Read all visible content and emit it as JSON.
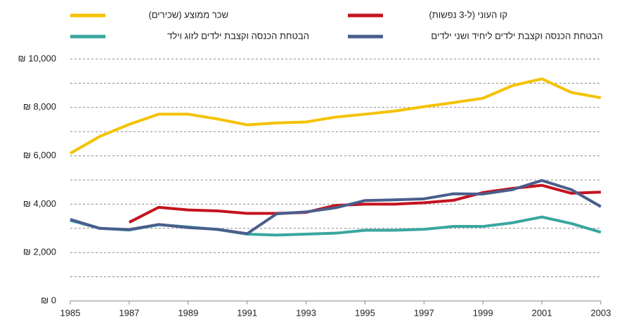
{
  "chart_data": {
    "type": "line",
    "x": [
      1985,
      1986,
      1987,
      1988,
      1989,
      1990,
      1991,
      1992,
      1993,
      1994,
      1995,
      1996,
      1997,
      1998,
      1999,
      2000,
      2001,
      2002,
      2003
    ],
    "series": [
      {
        "name": "שכר ממוצע (שכירים)",
        "color": "#f5c200",
        "values": [
          6100,
          6800,
          7300,
          7720,
          7720,
          7520,
          7280,
          7360,
          7400,
          7600,
          7720,
          7850,
          8030,
          8200,
          8380,
          8900,
          9180,
          8620,
          8400
        ]
      },
      {
        "name": "קו העוני (ל-3  נפשות)",
        "color": "#c4121f",
        "values": [
          null,
          null,
          3250,
          3870,
          3760,
          3720,
          3620,
          3620,
          3660,
          3950,
          4000,
          4000,
          4060,
          4160,
          4480,
          4650,
          4780,
          4450,
          4500
        ]
      },
      {
        "name": "הבטחת הכנסה וקצבת ילדים לזוג וילד",
        "color": "#3aa6a0",
        "values": [
          3330,
          3000,
          2930,
          3150,
          3060,
          2950,
          2760,
          2720,
          2760,
          2800,
          2920,
          2920,
          2960,
          3080,
          3080,
          3230,
          3470,
          3200,
          2840
        ]
      },
      {
        "name": "הבטחת הכנסה וקצבת ילדים ליחיד ושני ילדים",
        "color": "#4a5e8c",
        "values": [
          3370,
          3000,
          2950,
          3160,
          3030,
          2960,
          2780,
          3600,
          3680,
          3850,
          4150,
          4180,
          4220,
          4430,
          4420,
          4600,
          4980,
          4600,
          3900
        ]
      }
    ],
    "xlim": [
      1985,
      2003
    ],
    "xticks": [
      1985,
      1987,
      1989,
      1991,
      1993,
      1995,
      1997,
      1999,
      2001,
      2003
    ],
    "ylim": [
      0,
      10000
    ],
    "yticks": [
      {
        "value": 0,
        "label": "₪ 0"
      },
      {
        "value": 2000,
        "label": "₪ 2,000"
      },
      {
        "value": 4000,
        "label": "₪ 4,000"
      },
      {
        "value": 6000,
        "label": "₪ 6,000"
      },
      {
        "value": 8000,
        "label": "₪ 8,000"
      },
      {
        "value": 10000,
        "label": "₪ 10,000"
      }
    ],
    "yminor": [
      1000,
      3000,
      5000,
      7000,
      9000
    ],
    "grid": true
  }
}
